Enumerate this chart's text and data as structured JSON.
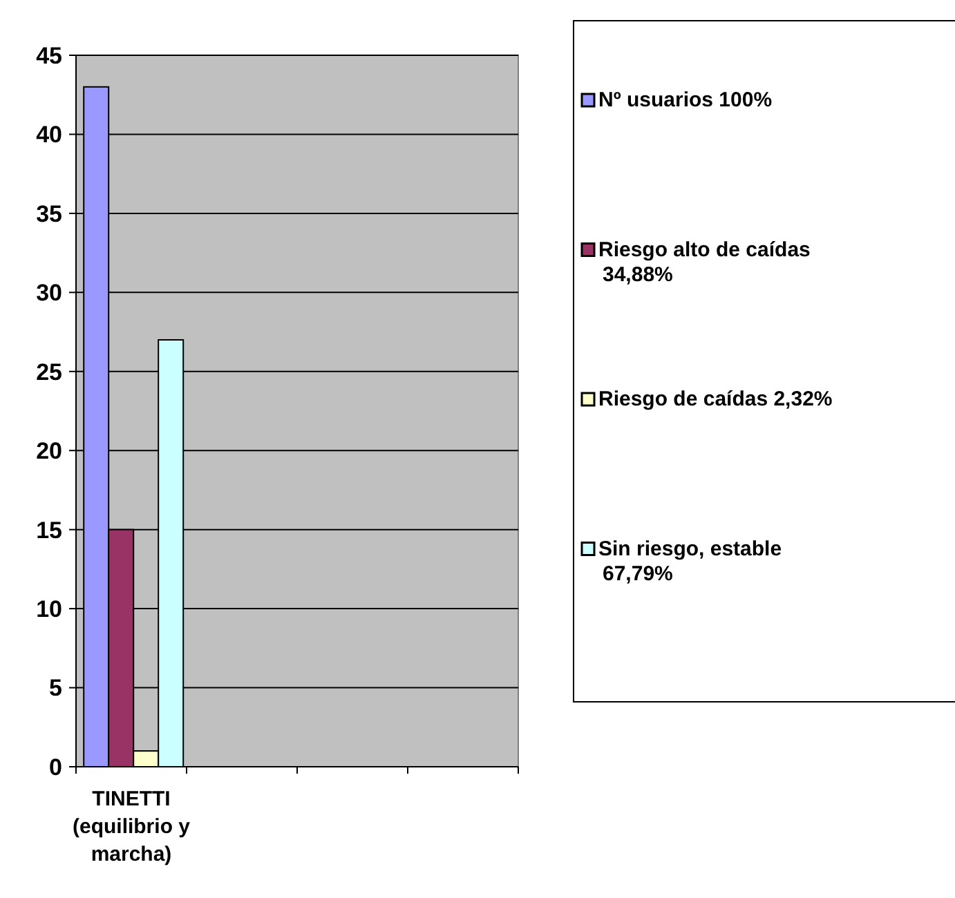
{
  "chart_data": {
    "type": "bar",
    "categories": [
      "TINETTI (equilibrio y marcha)",
      null,
      null,
      null
    ],
    "series": [
      {
        "name": "Nº usuarios 100%",
        "color": "#9999ff",
        "values": [
          43,
          null,
          null,
          null
        ]
      },
      {
        "name": "Riesgo alto de caídas 34,88%",
        "color": "#993366",
        "values": [
          15,
          null,
          null,
          null
        ]
      },
      {
        "name": "Riesgo de caídas 2,32%",
        "color": "#ffffcc",
        "values": [
          1,
          null,
          null,
          null
        ]
      },
      {
        "name": "Sin riesgo, estable 67,79%",
        "color": "#ccffff",
        "values": [
          27,
          null,
          null,
          null
        ]
      }
    ],
    "ylim": [
      0,
      45
    ],
    "yticks": [
      0,
      5,
      10,
      15,
      20,
      25,
      30,
      35,
      40,
      45
    ],
    "grid": "y",
    "legend": "right"
  }
}
